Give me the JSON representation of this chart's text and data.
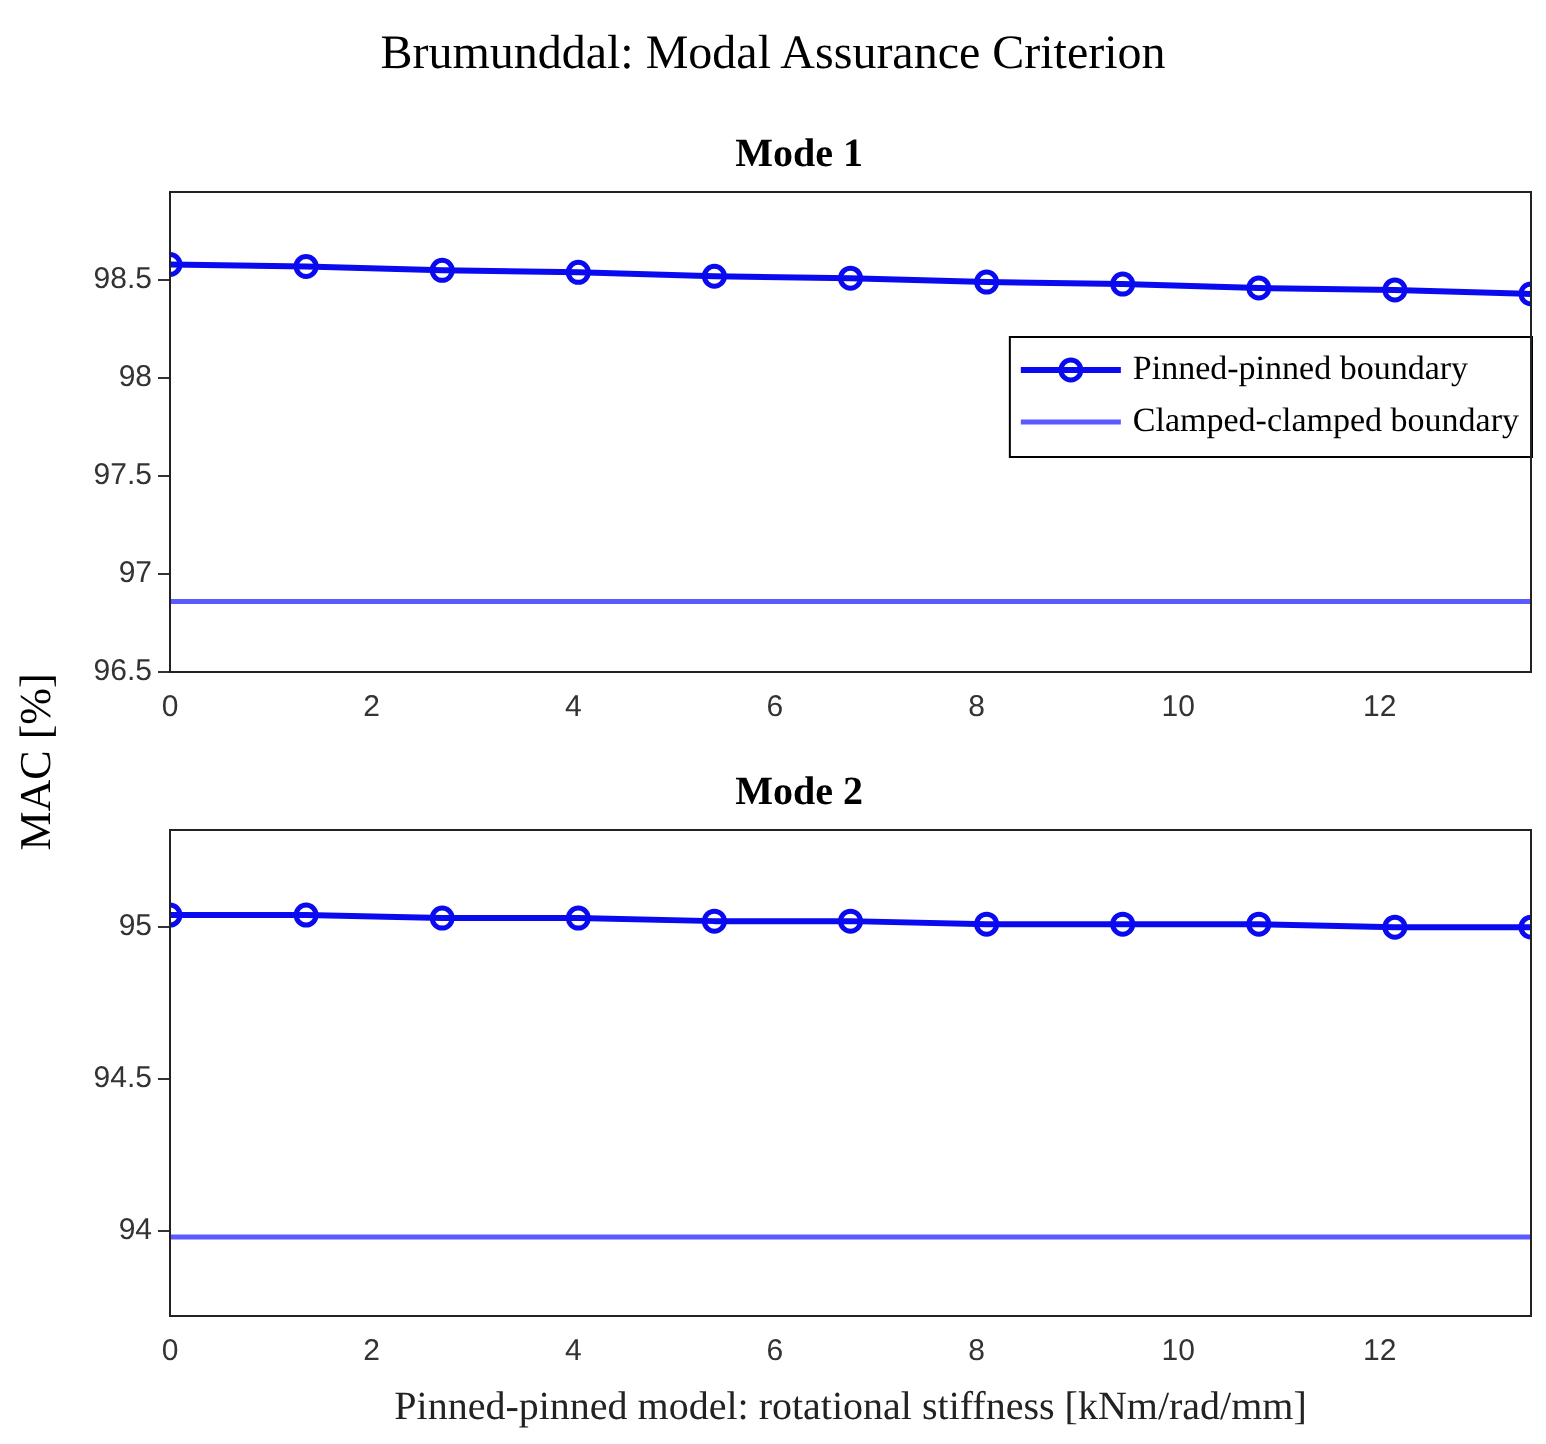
{
  "chart_data": [
    {
      "type": "line",
      "title": "Brumunddal: Modal Assurance Criterion",
      "subtitle": "Mode 1",
      "ylabel": "MAC [%]",
      "x": [
        0,
        1.35,
        2.7,
        4.05,
        5.4,
        6.75,
        8.1,
        9.45,
        10.8,
        12.15,
        13.5
      ],
      "xlim": [
        0,
        13.5
      ],
      "xticks": [
        0,
        2,
        4,
        6,
        8,
        10,
        12
      ],
      "ylim": [
        96.5,
        98.95
      ],
      "yticks": [
        96.5,
        97,
        97.5,
        98,
        98.5
      ],
      "grid": false,
      "legend": "right",
      "series": [
        {
          "name": "Pinned-pinned boundary",
          "color": "#0a0af0",
          "marker": "circle",
          "values": [
            98.58,
            98.57,
            98.55,
            98.54,
            98.52,
            98.51,
            98.49,
            98.48,
            98.46,
            98.45,
            98.43
          ]
        },
        {
          "name": "Clamped-clamped boundary",
          "color": "#5a5aff",
          "marker": "none",
          "values": [
            96.86,
            96.86,
            96.86,
            96.86,
            96.86,
            96.86,
            96.86,
            96.86,
            96.86,
            96.86,
            96.86
          ]
        }
      ]
    },
    {
      "type": "line",
      "title": "Mode 2",
      "xlabel": "Pinned-pinned model: rotational stiffness [kNm/rad/mm]",
      "x": [
        0,
        1.35,
        2.7,
        4.05,
        5.4,
        6.75,
        8.1,
        9.45,
        10.8,
        12.15,
        13.5
      ],
      "xlim": [
        0,
        13.5
      ],
      "xticks": [
        0,
        2,
        4,
        6,
        8,
        10,
        12
      ],
      "ylim": [
        93.72,
        95.32
      ],
      "yticks": [
        94,
        94.5,
        95
      ],
      "grid": false,
      "legend": false,
      "series": [
        {
          "color": "#0a0af0",
          "marker": "circle",
          "values": [
            95.04,
            95.04,
            95.03,
            95.03,
            95.02,
            95.02,
            95.01,
            95.01,
            95.01,
            95.0,
            95.0
          ]
        },
        {
          "color": "#5a5aff",
          "marker": "none",
          "values": [
            93.98,
            93.98,
            93.98,
            93.98,
            93.98,
            93.98,
            93.98,
            93.98,
            93.98,
            93.98,
            93.98
          ]
        }
      ]
    }
  ]
}
